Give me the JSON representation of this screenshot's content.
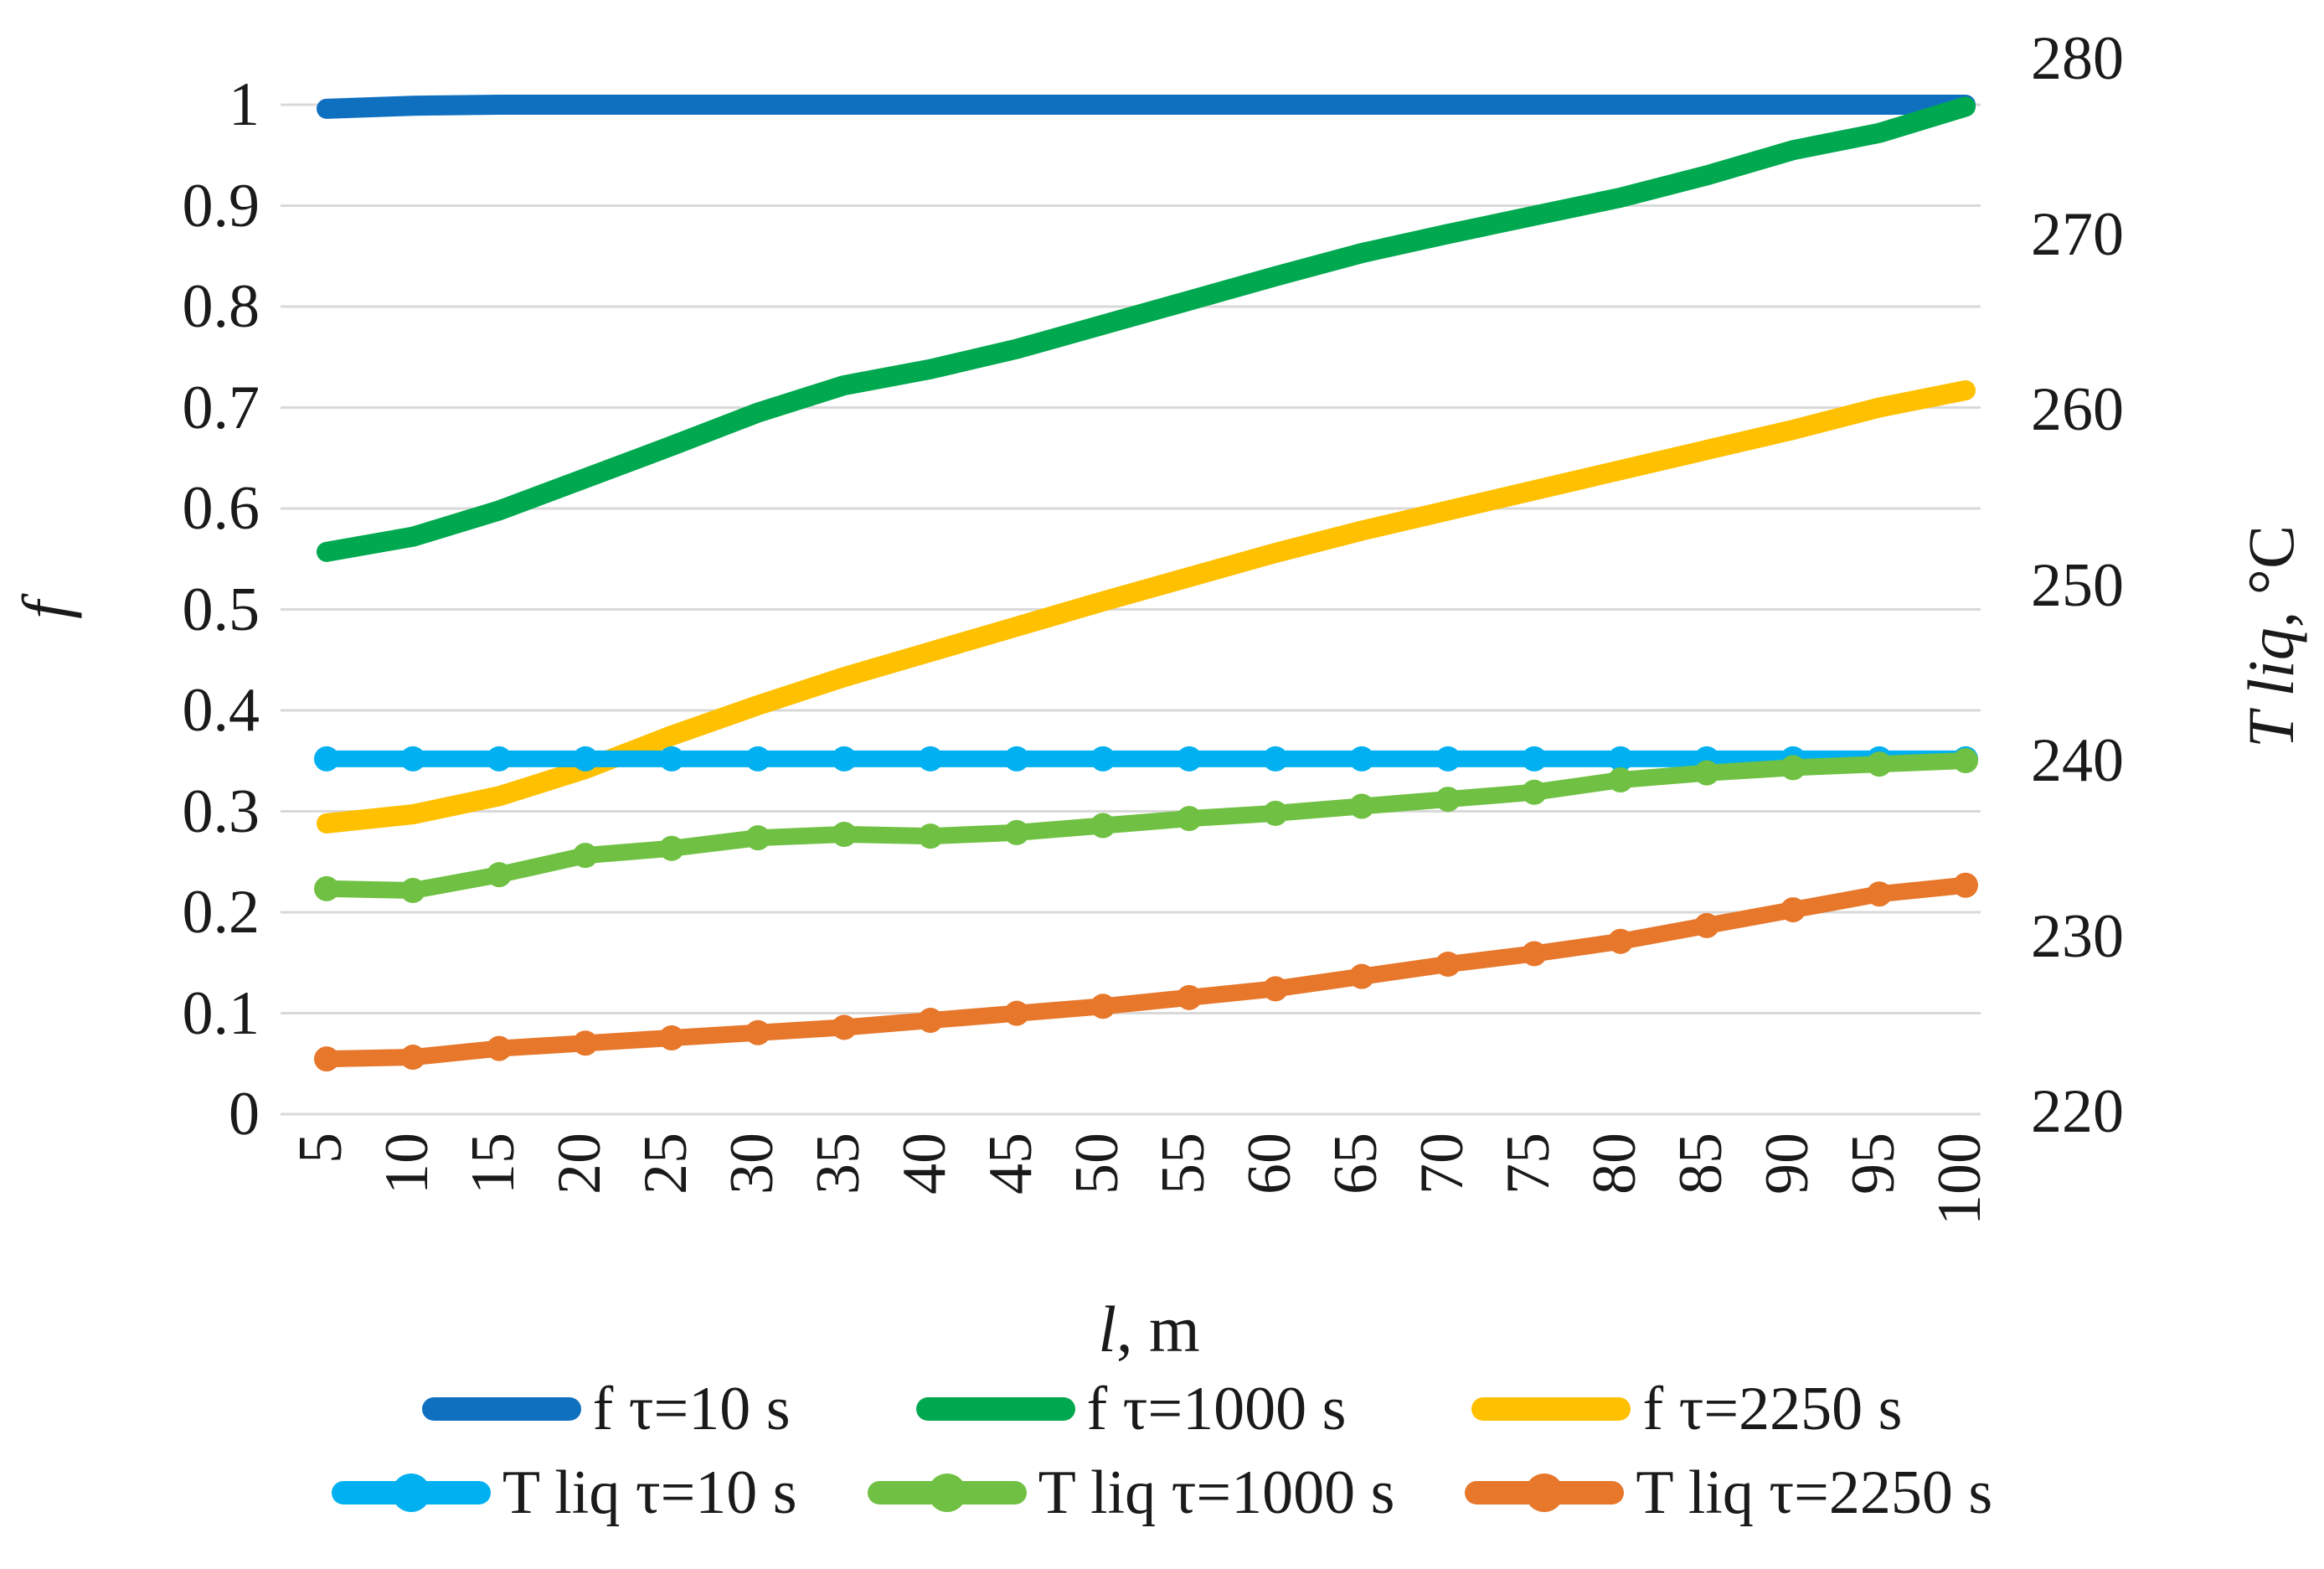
{
  "chart_data": {
    "type": "line",
    "title": "",
    "xlabel_var": "l",
    "xlabel_unit": ", m",
    "ylabel_left": "f",
    "ylabel_right_var": "T liq",
    "ylabel_right_unit": ", °C",
    "grid": "horizontal",
    "grid_color": "#D9D9D9",
    "background": "#FFFFFF",
    "legend_position": "bottom",
    "x": [
      5,
      10,
      15,
      20,
      25,
      30,
      35,
      40,
      45,
      50,
      55,
      60,
      65,
      70,
      75,
      80,
      85,
      90,
      95,
      100
    ],
    "x_tick_labels": [
      "5",
      "10",
      "15",
      "20",
      "25",
      "30",
      "35",
      "40",
      "45",
      "50",
      "55",
      "60",
      "65",
      "70",
      "75",
      "80",
      "85",
      "90",
      "95",
      "100"
    ],
    "left_axis": {
      "min": 0,
      "max": 1,
      "tick_labels": [
        "1",
        "0.9",
        "0.8",
        "0.7",
        "0.6",
        "0.5",
        "0.4",
        "0.3",
        "0.2",
        "0.1",
        "0"
      ]
    },
    "right_axis": {
      "min": 220,
      "max": 280,
      "tick_labels": [
        "280",
        "270",
        "260",
        "250",
        "240",
        "230",
        "220"
      ]
    },
    "series": [
      {
        "name": "f τ=10 s",
        "axis": "left",
        "color": "#1070C0",
        "marker": false,
        "values": [
          0.996,
          0.999,
          1.0,
          1.0,
          1.0,
          1.0,
          1.0,
          1.0,
          1.0,
          1.0,
          1.0,
          1.0,
          1.0,
          1.0,
          1.0,
          1.0,
          1.0,
          1.0,
          1.0,
          1.0
        ]
      },
      {
        "name": "f τ=1000 s",
        "axis": "left",
        "color": "#00A94F",
        "marker": false,
        "values": [
          0.557,
          0.572,
          0.598,
          0.63,
          0.662,
          0.695,
          0.722,
          0.738,
          0.758,
          0.782,
          0.806,
          0.83,
          0.853,
          0.872,
          0.89,
          0.908,
          0.93,
          0.955,
          0.972,
          0.998
        ]
      },
      {
        "name": "f τ=2250 s",
        "axis": "left",
        "color": "#FFC000",
        "marker": false,
        "values": [
          0.288,
          0.297,
          0.315,
          0.342,
          0.375,
          0.405,
          0.433,
          0.458,
          0.483,
          0.508,
          0.532,
          0.556,
          0.578,
          0.598,
          0.618,
          0.638,
          0.658,
          0.678,
          0.7,
          0.717
        ]
      },
      {
        "name": "T liq τ=10 s",
        "axis": "right",
        "color": "#00B0F0",
        "marker": true,
        "values": [
          240.1,
          240.1,
          240.1,
          240.1,
          240.1,
          240.1,
          240.1,
          240.1,
          240.1,
          240.1,
          240.1,
          240.1,
          240.1,
          240.1,
          240.1,
          240.1,
          240.1,
          240.1,
          240.1,
          240.1
        ]
      },
      {
        "name": "T liq τ=1000 s",
        "axis": "right",
        "color": "#70C143",
        "marker": true,
        "values": [
          232.7,
          232.6,
          233.5,
          234.6,
          235.0,
          235.6,
          235.8,
          235.7,
          235.9,
          236.3,
          236.7,
          237.0,
          237.4,
          237.8,
          238.2,
          238.9,
          239.3,
          239.6,
          239.8,
          240.0
        ]
      },
      {
        "name": "T liq τ=2250 s",
        "axis": "right",
        "color": "#E6772B",
        "marker": true,
        "values": [
          223.0,
          223.1,
          223.6,
          223.9,
          224.2,
          224.5,
          224.8,
          225.2,
          225.6,
          226.0,
          226.5,
          227.0,
          227.7,
          228.4,
          229.0,
          229.7,
          230.6,
          231.5,
          232.4,
          232.9
        ]
      }
    ],
    "legend_rows": [
      [
        0,
        1,
        2
      ],
      [
        3,
        4,
        5
      ]
    ]
  }
}
